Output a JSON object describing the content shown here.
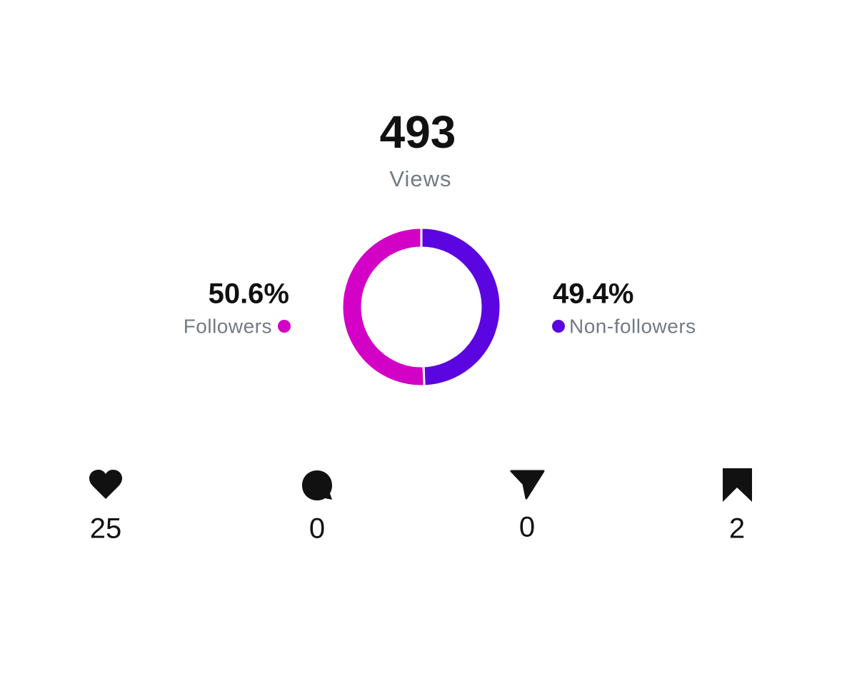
{
  "chart_data": {
    "type": "donut",
    "total": "493",
    "total_label": "Views",
    "categories": [
      "Followers",
      "Non-followers"
    ],
    "values": [
      50.6,
      49.4
    ],
    "value_labels": [
      "50.6%",
      "49.4%"
    ],
    "colors": [
      "#d300c5",
      "#5b06e0"
    ]
  },
  "stats": [
    "25",
    "0",
    "0",
    "2"
  ]
}
